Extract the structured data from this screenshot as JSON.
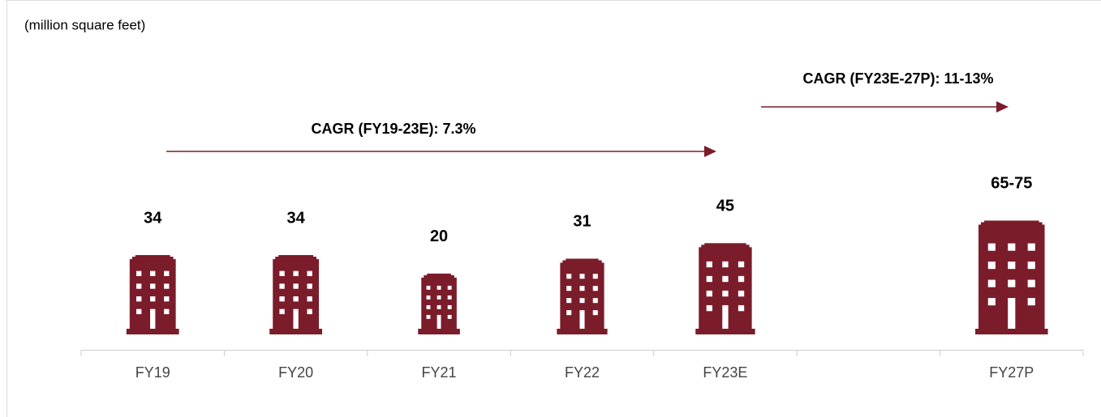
{
  "chart_data": {
    "type": "pictograph",
    "subtitle": "(million square feet)",
    "categories": [
      "FY19",
      "FY20",
      "FY21",
      "FY22",
      "FY23E",
      null,
      "FY27P"
    ],
    "values": [
      34,
      34,
      20,
      31,
      45,
      null,
      70
    ],
    "value_labels": [
      "34",
      "34",
      "20",
      "31",
      "45",
      null,
      "65-75"
    ],
    "color": "#7b1c2a",
    "annotations": [
      "CAGR (FY19-23E): 7.3%",
      "CAGR (FY23E-27P): 11-13%"
    ]
  }
}
